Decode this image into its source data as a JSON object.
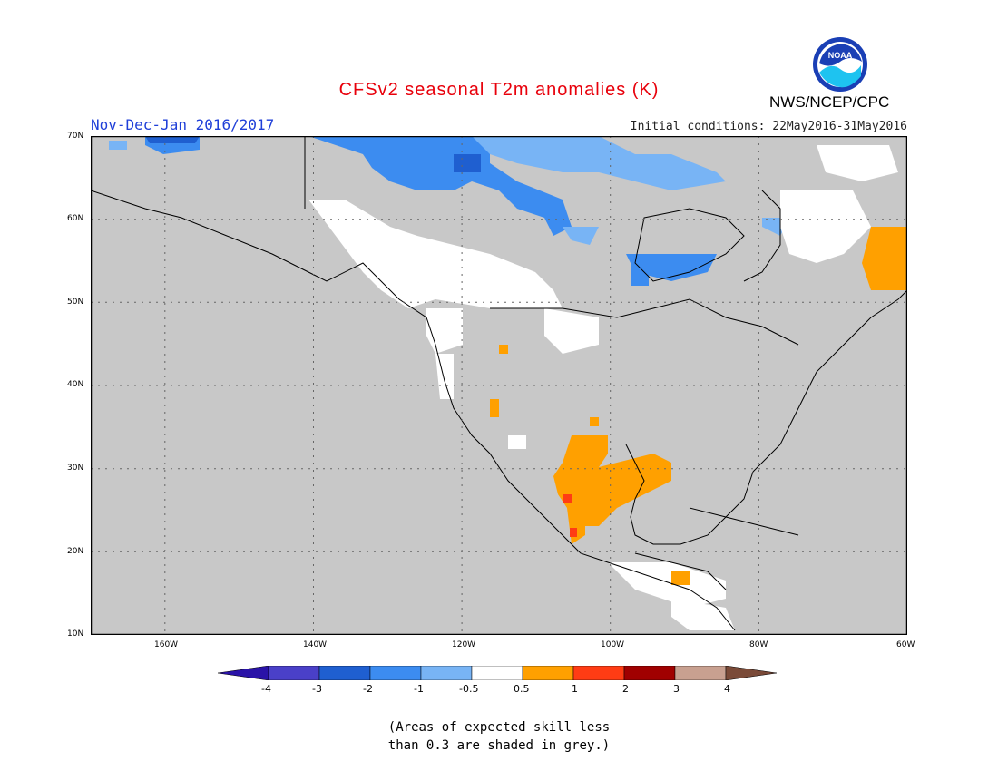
{
  "header": {
    "title": "CFSv2 seasonal T2m anomalies (K)",
    "season": "Nov-Dec-Jan 2016/2017",
    "initial_conditions": "Initial conditions: 22May2016-31May2016",
    "organization": "NWS/NCEP/CPC",
    "logo_text": "NOAA"
  },
  "colors": {
    "title": "#e8000b",
    "season": "#1f3fd8",
    "land_grey": "#c8c8c8",
    "grid": "#666666"
  },
  "map": {
    "lat_labels": [
      "70N",
      "60N",
      "50N",
      "40N",
      "30N",
      "20N",
      "10N"
    ],
    "lon_labels": [
      "160W",
      "140W",
      "120W",
      "100W",
      "80W",
      "60W"
    ],
    "extent": {
      "lon_min": -170,
      "lon_max": -60,
      "lat_min": 10,
      "lat_max": 70
    }
  },
  "colorbar": {
    "labels": [
      "-4",
      "-3",
      "-2",
      "-1",
      "-0.5",
      "0.5",
      "1",
      "2",
      "3",
      "4"
    ],
    "colors": [
      "#2a13a8",
      "#4a40c8",
      "#1f5fd0",
      "#3c8cf0",
      "#78b4f5",
      "#ffffff",
      "#ffa000",
      "#ff3c14",
      "#a00000",
      "#c8a090",
      "#7a4a38"
    ]
  },
  "note": {
    "line1": "(Areas of expected skill less",
    "line2": "than 0.3 are shaded in grey.)"
  }
}
